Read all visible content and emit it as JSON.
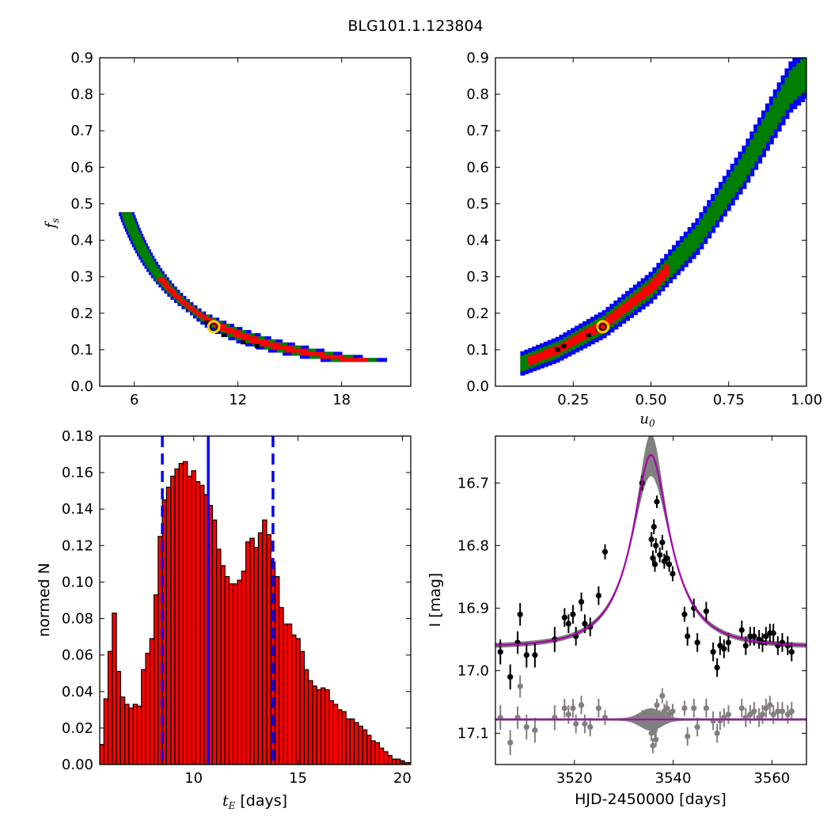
{
  "figure": {
    "title": "BLG101.1.123804"
  },
  "colors": {
    "red": "#ff0000",
    "green": "#007f00",
    "blue": "#0000ff",
    "black": "#000000",
    "marker": "#ffcc00",
    "model": "#aa00aa",
    "band": "#808080",
    "resid": "#808080"
  },
  "chart_data": [
    {
      "type": "heatmap",
      "panel": "top-left",
      "description_levels": [
        "red",
        "green",
        "blue"
      ],
      "xlabel": "",
      "ylabel": "f_s",
      "xlim": [
        4,
        22
      ],
      "ylim": [
        0.0,
        0.9
      ],
      "xticks": [
        "6",
        "12",
        "18"
      ],
      "xtick_values": [
        6,
        12,
        18
      ],
      "yticks": [
        "0.0",
        "0.1",
        "0.2",
        "0.3",
        "0.4",
        "0.5",
        "0.6",
        "0.7",
        "0.8",
        "0.9"
      ],
      "curve": {
        "form": "power",
        "x_anchor": 10.0,
        "y_anchor": 0.19,
        "exponent": -1.55,
        "x_range": [
          5.6,
          20.0
        ]
      },
      "best_fit": {
        "x": 10.6,
        "y": 0.163
      }
    },
    {
      "type": "heatmap",
      "panel": "top-right",
      "xlabel": "u_0",
      "ylabel": "",
      "xlim": [
        0.0,
        1.0
      ],
      "ylim": [
        0.0,
        0.9
      ],
      "xticks": [
        "0.25",
        "0.50",
        "0.75",
        "1.00"
      ],
      "xtick_values": [
        0.25,
        0.5,
        0.75,
        1.0
      ],
      "yticks": [
        "0.0",
        "0.1",
        "0.2",
        "0.3",
        "0.4",
        "0.5",
        "0.6",
        "0.7",
        "0.8",
        "0.9"
      ],
      "curve": {
        "form": "poly",
        "points": [
          [
            0.08,
            0.06
          ],
          [
            0.2,
            0.1
          ],
          [
            0.35,
            0.17
          ],
          [
            0.5,
            0.27
          ],
          [
            0.65,
            0.41
          ],
          [
            0.8,
            0.6
          ],
          [
            0.95,
            0.82
          ],
          [
            1.0,
            0.86
          ]
        ]
      },
      "best_fit": {
        "x": 0.345,
        "y": 0.163
      }
    },
    {
      "type": "bar",
      "panel": "bottom-left",
      "xlabel": "t_E",
      "xlabel_unit": "[days]",
      "ylabel": "normed N",
      "xlim": [
        5.5,
        20.4
      ],
      "ylim": [
        0.0,
        0.18
      ],
      "xticks": [
        "10",
        "15",
        "20"
      ],
      "xtick_values": [
        10,
        15,
        20
      ],
      "yticks": [
        "0.00",
        "0.02",
        "0.04",
        "0.06",
        "0.08",
        "0.10",
        "0.12",
        "0.14",
        "0.16",
        "0.18"
      ],
      "bin_start": 5.5,
      "bin_width": 0.2,
      "values": [
        0.011,
        0.036,
        0.062,
        0.083,
        0.051,
        0.037,
        0.033,
        0.031,
        0.033,
        0.032,
        0.052,
        0.061,
        0.069,
        0.093,
        0.125,
        0.145,
        0.152,
        0.158,
        0.162,
        0.165,
        0.166,
        0.158,
        0.161,
        0.155,
        0.153,
        0.148,
        0.142,
        0.134,
        0.118,
        0.109,
        0.103,
        0.099,
        0.099,
        0.101,
        0.106,
        0.122,
        0.124,
        0.119,
        0.127,
        0.134,
        0.126,
        0.111,
        0.103,
        0.086,
        0.077,
        0.077,
        0.071,
        0.069,
        0.062,
        0.052,
        0.046,
        0.043,
        0.041,
        0.042,
        0.041,
        0.035,
        0.033,
        0.03,
        0.029,
        0.025,
        0.025,
        0.023,
        0.021,
        0.019,
        0.016,
        0.013,
        0.012,
        0.009,
        0.007,
        0.005,
        0.003,
        0.003,
        0.002,
        0.001,
        0.001
      ],
      "vlines": [
        {
          "x": 8.5,
          "style": "dashed"
        },
        {
          "x": 10.7,
          "style": "solid"
        },
        {
          "x": 13.8,
          "style": "dashed"
        }
      ]
    },
    {
      "type": "scatter",
      "panel": "bottom-right",
      "xlabel": "HJD-2450000 [days]",
      "ylabel": "I [mag]",
      "xlim": [
        3504,
        3567
      ],
      "ylim": [
        17.15,
        16.625
      ],
      "xticks": [
        "3520",
        "3540",
        "3560"
      ],
      "xtick_values": [
        3520,
        3540,
        3560
      ],
      "yticks": [
        "16.7",
        "16.8",
        "16.9",
        "17.0",
        "17.1"
      ],
      "ytick_values": [
        16.7,
        16.8,
        16.9,
        17.0,
        17.1
      ],
      "model": {
        "t0": 3535.5,
        "tE": 10.6,
        "u0": 0.345,
        "baseline": 16.962,
        "peak": 16.655,
        "resid_offset": 17.078
      },
      "data_points": [
        [
          3505,
          16.97,
          0.02
        ],
        [
          3507,
          17.01,
          0.02
        ],
        [
          3508.5,
          16.955,
          0.018
        ],
        [
          3509,
          16.91,
          0.018
        ],
        [
          3510.3,
          16.975,
          0.02
        ],
        [
          3512,
          16.975,
          0.02
        ],
        [
          3516,
          16.95,
          0.02
        ],
        [
          3518,
          16.915,
          0.015
        ],
        [
          3518.8,
          16.925,
          0.015
        ],
        [
          3519.7,
          16.91,
          0.015
        ],
        [
          3520.3,
          16.945,
          0.015
        ],
        [
          3521.4,
          16.89,
          0.015
        ],
        [
          3522.1,
          16.925,
          0.015
        ],
        [
          3523.2,
          16.93,
          0.015
        ],
        [
          3524.9,
          16.88,
          0.015
        ],
        [
          3526.2,
          16.81,
          0.012
        ],
        [
          3533.7,
          16.7,
          0.012
        ],
        [
          3536.7,
          16.73,
          0.01
        ],
        [
          3535.6,
          16.79,
          0.012
        ],
        [
          3536.1,
          16.77,
          0.012
        ],
        [
          3536.5,
          16.8,
          0.012
        ],
        [
          3535.9,
          16.82,
          0.012
        ],
        [
          3536.3,
          16.83,
          0.012
        ],
        [
          3537.3,
          16.815,
          0.012
        ],
        [
          3537.8,
          16.795,
          0.012
        ],
        [
          3538.2,
          16.825,
          0.012
        ],
        [
          3538.7,
          16.82,
          0.012
        ],
        [
          3539.2,
          16.83,
          0.012
        ],
        [
          3539.9,
          16.845,
          0.012
        ],
        [
          3542.3,
          16.91,
          0.012
        ],
        [
          3542.9,
          16.945,
          0.015
        ],
        [
          3544.2,
          16.9,
          0.015
        ],
        [
          3544.9,
          16.955,
          0.015
        ],
        [
          3546.7,
          16.905,
          0.015
        ],
        [
          3548.1,
          16.97,
          0.015
        ],
        [
          3548.9,
          16.995,
          0.015
        ],
        [
          3549.5,
          16.96,
          0.015
        ],
        [
          3550.3,
          16.965,
          0.015
        ],
        [
          3551.2,
          16.955,
          0.015
        ],
        [
          3553.9,
          16.935,
          0.015
        ],
        [
          3554.7,
          16.96,
          0.015
        ],
        [
          3555.6,
          16.945,
          0.015
        ],
        [
          3556.4,
          16.945,
          0.015
        ],
        [
          3557.4,
          16.95,
          0.015
        ],
        [
          3558.1,
          16.955,
          0.015
        ],
        [
          3558.8,
          16.945,
          0.015
        ],
        [
          3559.6,
          16.94,
          0.015
        ],
        [
          3560.3,
          16.94,
          0.015
        ],
        [
          3561.2,
          16.96,
          0.015
        ],
        [
          3562.1,
          16.955,
          0.015
        ],
        [
          3563.2,
          16.96,
          0.015
        ],
        [
          3564,
          16.97,
          0.015
        ]
      ],
      "residual_points": [
        [
          3505,
          17.075,
          0.02
        ],
        [
          3507,
          17.115,
          0.02
        ],
        [
          3508.5,
          17.075,
          0.018
        ],
        [
          3509,
          17.025,
          0.018
        ],
        [
          3510.3,
          17.09,
          0.02
        ],
        [
          3512,
          17.095,
          0.02
        ],
        [
          3516,
          17.075,
          0.02
        ],
        [
          3518,
          17.06,
          0.015
        ],
        [
          3518.8,
          17.07,
          0.015
        ],
        [
          3519.7,
          17.06,
          0.015
        ],
        [
          3520.3,
          17.085,
          0.015
        ],
        [
          3521.4,
          17.055,
          0.015
        ],
        [
          3522.1,
          17.085,
          0.015
        ],
        [
          3523.2,
          17.09,
          0.015
        ],
        [
          3524.9,
          17.06,
          0.015
        ],
        [
          3526.2,
          17.075,
          0.012
        ],
        [
          3533.7,
          17.075,
          0.012
        ],
        [
          3536.7,
          17.055,
          0.01
        ],
        [
          3535.6,
          17.1,
          0.012
        ],
        [
          3536.1,
          17.085,
          0.012
        ],
        [
          3536.5,
          17.11,
          0.012
        ],
        [
          3535.9,
          17.12,
          0.012
        ],
        [
          3536.3,
          17.095,
          0.012
        ],
        [
          3537.3,
          17.075,
          0.012
        ],
        [
          3537.8,
          17.04,
          0.012
        ],
        [
          3538.2,
          17.065,
          0.012
        ],
        [
          3538.7,
          17.06,
          0.012
        ],
        [
          3539.2,
          17.07,
          0.012
        ],
        [
          3539.9,
          17.065,
          0.012
        ],
        [
          3542.3,
          17.06,
          0.012
        ],
        [
          3542.9,
          17.105,
          0.015
        ],
        [
          3544.2,
          17.06,
          0.015
        ],
        [
          3544.9,
          17.09,
          0.015
        ],
        [
          3546.7,
          17.06,
          0.015
        ],
        [
          3548.1,
          17.08,
          0.015
        ],
        [
          3548.9,
          17.1,
          0.015
        ],
        [
          3549.5,
          17.08,
          0.015
        ],
        [
          3550.3,
          17.075,
          0.015
        ],
        [
          3551.2,
          17.07,
          0.015
        ],
        [
          3553.9,
          17.06,
          0.015
        ],
        [
          3554.7,
          17.075,
          0.015
        ],
        [
          3555.6,
          17.07,
          0.015
        ],
        [
          3556.4,
          17.065,
          0.015
        ],
        [
          3557.4,
          17.075,
          0.015
        ],
        [
          3558.1,
          17.07,
          0.015
        ],
        [
          3558.8,
          17.06,
          0.015
        ],
        [
          3559.6,
          17.055,
          0.015
        ],
        [
          3560.3,
          17.07,
          0.015
        ],
        [
          3561.2,
          17.065,
          0.015
        ],
        [
          3562.1,
          17.065,
          0.015
        ],
        [
          3563.2,
          17.07,
          0.015
        ],
        [
          3564,
          17.065,
          0.015
        ]
      ]
    }
  ]
}
